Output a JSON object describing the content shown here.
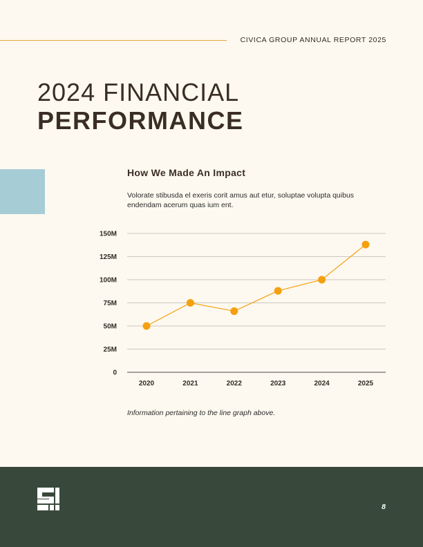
{
  "header": {
    "report_title": "CIVICA GROUP ANNUAL REPORT 2025",
    "heading_line1": "2024 FINANCIAL",
    "heading_line2": "PERFORMANCE"
  },
  "section": {
    "title": "How We Made An Impact",
    "description": "Volorate stibusda el exeris corit amus aut etur, soluptae volupta quibus endendam acerum quas ium ent."
  },
  "caption": "Information pertaining to the line graph above.",
  "footer": {
    "page_number": "8",
    "logo_icon": "company-logo-icon"
  },
  "colors": {
    "background": "#fdf9f0",
    "accent_line": "#e0a43a",
    "accent_block": "#a6cdd6",
    "series": "#f5a00f",
    "footer": "#38493b",
    "text": "#3a2e24"
  },
  "chart_data": {
    "type": "line",
    "title": "",
    "xlabel": "",
    "ylabel": "",
    "categories": [
      "2020",
      "2021",
      "2022",
      "2023",
      "2024",
      "2025"
    ],
    "series": [
      {
        "values": [
          50,
          75,
          66,
          88,
          100,
          138
        ]
      }
    ],
    "yticks": [
      0,
      25,
      50,
      75,
      100,
      125,
      150
    ],
    "ytick_labels": [
      "0",
      "25M",
      "50M",
      "75M",
      "100M",
      "125M",
      "150M"
    ],
    "ylim": [
      0,
      150
    ],
    "unit": "M",
    "grid": true,
    "legend": "none"
  }
}
